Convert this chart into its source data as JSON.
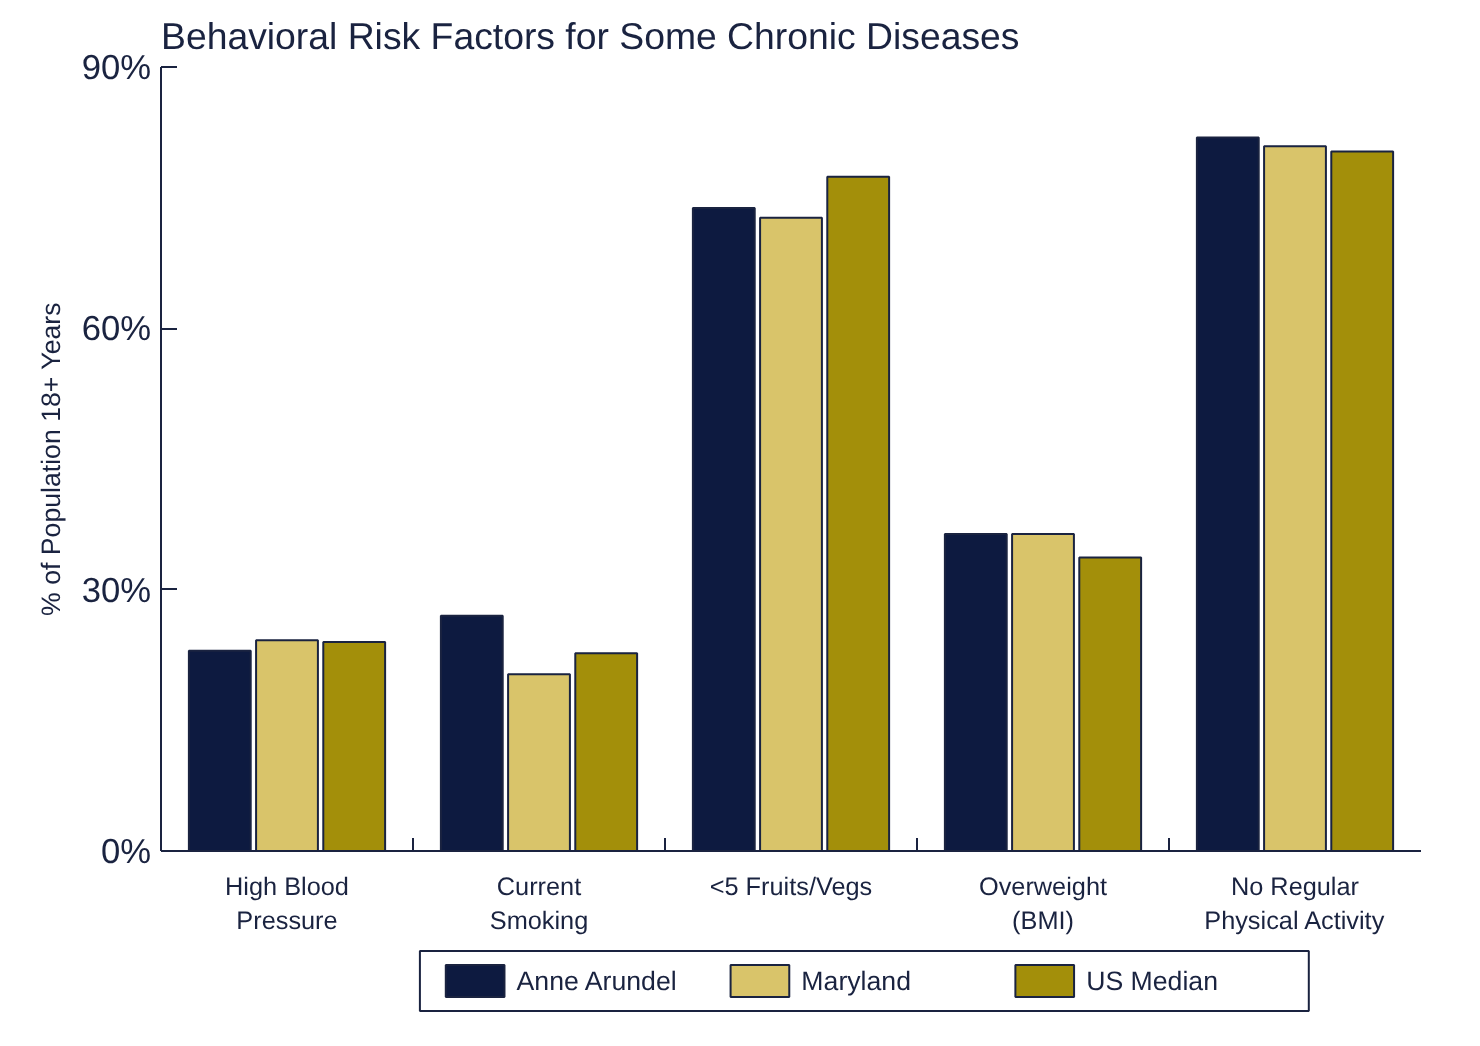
{
  "chart_data": {
    "type": "bar",
    "title": "Behavioral Risk Factors for Some Chronic Diseases",
    "ylabel": "% of Population 18+ Years",
    "categories": [
      "High Blood\nPressure",
      "Current\nSmoking",
      "<5 Fruits/Vegs",
      "Overweight\n(BMI)",
      "No Regular\nPhysical Activity"
    ],
    "series": [
      {
        "name": "Anne Arundel",
        "color": "#0d1a40",
        "values": [
          23.0,
          27.0,
          73.8,
          36.4,
          81.9
        ]
      },
      {
        "name": "Maryland",
        "color": "#d9c46a",
        "values": [
          24.2,
          20.3,
          72.7,
          36.4,
          80.9
        ]
      },
      {
        "name": "US Median",
        "color": "#a38f0a",
        "values": [
          24.0,
          22.7,
          77.4,
          33.7,
          80.3
        ]
      }
    ],
    "ylim": [
      0,
      90
    ],
    "yticks": [
      {
        "value": 0,
        "label": "0%"
      },
      {
        "value": 30,
        "label": "30%"
      },
      {
        "value": 60,
        "label": "60%"
      },
      {
        "value": 90,
        "label": "90%"
      }
    ],
    "grid": false,
    "legend": "bottom"
  }
}
